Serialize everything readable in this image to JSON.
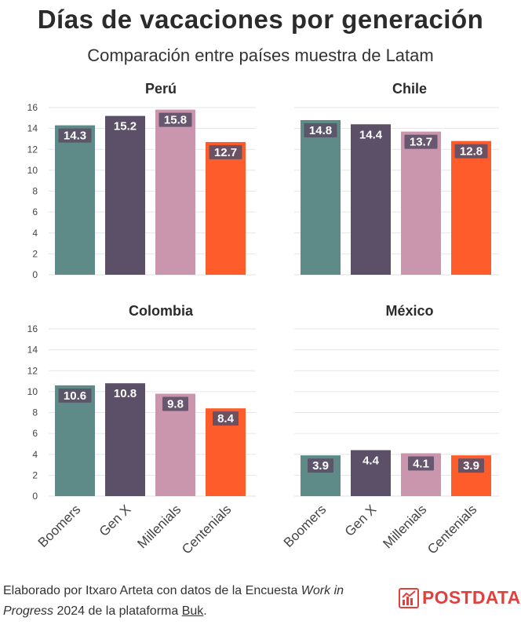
{
  "title": "Días de vacaciones por generación",
  "subtitle": "Comparación entre países muestra de Latam",
  "colors": {
    "Boomers": "#5e8b87",
    "Gen X": "#5c5068",
    "Millenials": "#c996ae",
    "Centenials": "#ff5c2b",
    "grid": "#e6e6e6",
    "axis_text": "#444444",
    "label_bg": "#5c5068"
  },
  "chart_data": [
    {
      "type": "bar",
      "title": "Perú",
      "categories": [
        "Boomers",
        "Gen X",
        "Millenials",
        "Centenials"
      ],
      "values": [
        14.3,
        15.2,
        15.8,
        12.7
      ],
      "value_labels": [
        "14.3",
        "15.2",
        "15.8",
        "12.7"
      ],
      "ylim": [
        0,
        16
      ],
      "yticks": [
        "0",
        "2",
        "4",
        "6",
        "8",
        "10",
        "12",
        "14",
        "16"
      ],
      "xlabel": "",
      "ylabel": ""
    },
    {
      "type": "bar",
      "title": "Chile",
      "categories": [
        "Boomers",
        "Gen X",
        "Millenials",
        "Centenials"
      ],
      "values": [
        14.8,
        14.4,
        13.7,
        12.8
      ],
      "value_labels": [
        "14.8",
        "14.4",
        "13.7",
        "12.8"
      ],
      "ylim": [
        0,
        16
      ],
      "yticks": [],
      "xlabel": "",
      "ylabel": ""
    },
    {
      "type": "bar",
      "title": "Colombia",
      "categories": [
        "Boomers",
        "Gen X",
        "Millenials",
        "Centenials"
      ],
      "values": [
        10.6,
        10.8,
        9.8,
        8.4
      ],
      "value_labels": [
        "10.6",
        "10.8",
        "9.8",
        "8.4"
      ],
      "ylim": [
        0,
        16
      ],
      "yticks": [
        "0",
        "2",
        "4",
        "6",
        "8",
        "10",
        "12",
        "14",
        "16"
      ],
      "xlabel": "",
      "ylabel": ""
    },
    {
      "type": "bar",
      "title": "México",
      "categories": [
        "Boomers",
        "Gen X",
        "Millenials",
        "Centenials"
      ],
      "values": [
        3.9,
        4.4,
        4.1,
        3.9
      ],
      "value_labels": [
        "3.9",
        "4.4",
        "4.1",
        "3.9"
      ],
      "ylim": [
        0,
        16
      ],
      "yticks": [],
      "xlabel": "",
      "ylabel": ""
    }
  ],
  "x_tick_labels": [
    "Boomers",
    "Gen X",
    "Millenials",
    "Centenials"
  ],
  "footer": {
    "part1": "Elaborado por Itxaro Arteta con datos de la Encuesta ",
    "italic": "Work in Progress",
    "part2": " 2024 de la plataforma ",
    "link": "Buk",
    "end": "."
  },
  "logo": {
    "text": "POSTDATA",
    "icon": "bar-chart-logo-icon"
  }
}
